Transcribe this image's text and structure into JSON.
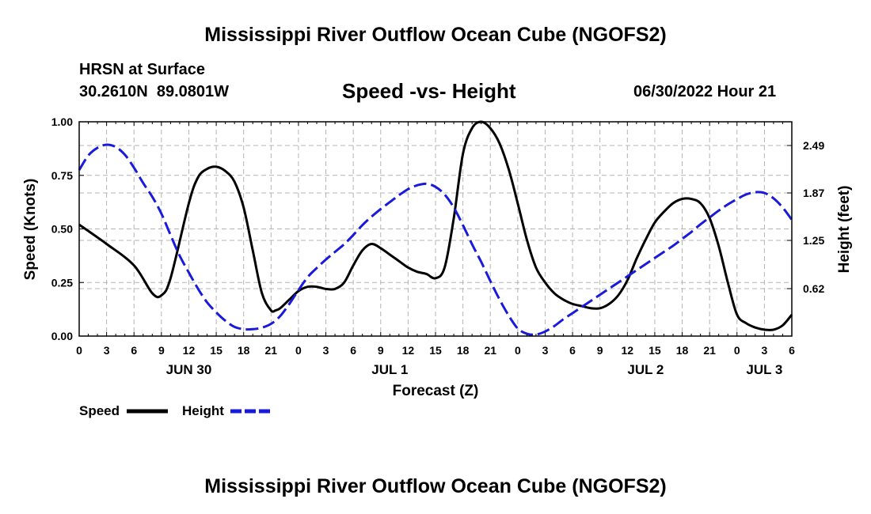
{
  "header": {
    "title": "Mississippi River Outflow Ocean Cube (NGOFS2)",
    "station": "HRSN at Surface",
    "coords": "30.2610N  89.0801W",
    "subtitle": "Speed -vs- Height",
    "datetime": "06/30/2022 Hour 21"
  },
  "footer": {
    "title": "Mississippi River Outflow Ocean Cube (NGOFS2)"
  },
  "legend": {
    "speed_label": "Speed",
    "height_label": "Height"
  },
  "colors": {
    "speed": "#000000",
    "height": "#1a1adb",
    "grid": "#b4b4b4"
  },
  "chart_data": {
    "type": "line",
    "title": "Speed -vs- Height",
    "xlabel": "Forecast (Z)",
    "ylabel": "Speed (Knots)",
    "y2label": "Height (feet)",
    "xlim": [
      0,
      78
    ],
    "ylim": [
      0,
      1.0
    ],
    "y2lim": [
      0.0,
      2.8
    ],
    "x_ticks": [
      0,
      3,
      6,
      9,
      12,
      15,
      18,
      21,
      24,
      27,
      30,
      33,
      36,
      39,
      42,
      45,
      48,
      51,
      54,
      57,
      60,
      63,
      66,
      69,
      72,
      75,
      78
    ],
    "x_tick_labels": [
      "0",
      "3",
      "6",
      "9",
      "12",
      "15",
      "18",
      "21",
      "0",
      "3",
      "6",
      "9",
      "12",
      "15",
      "18",
      "21",
      "0",
      "3",
      "6",
      "9",
      "12",
      "15",
      "18",
      "21",
      "0",
      "3",
      "6"
    ],
    "y_ticks": [
      0.0,
      0.25,
      0.5,
      0.75,
      1.0
    ],
    "y_tick_labels": [
      "0.00",
      "0.25",
      "0.50",
      "0.75",
      "1.00"
    ],
    "y2_ticks": [
      0.62,
      1.25,
      1.87,
      2.49
    ],
    "y2_tick_labels": [
      "0.62",
      "1.25",
      "1.87",
      "2.49"
    ],
    "day_labels": [
      {
        "x": 12,
        "label": "JUN 30"
      },
      {
        "x": 34,
        "label": "JUL 1"
      },
      {
        "x": 62,
        "label": "JUL 2"
      },
      {
        "x": 75,
        "label": "JUL 3"
      }
    ],
    "series": [
      {
        "name": "Speed",
        "axis": "left",
        "style": "solid",
        "x": [
          0,
          3,
          6,
          8,
          9,
          10,
          12,
          13,
          14,
          15,
          16,
          17,
          18,
          19,
          20,
          21,
          21.5,
          22,
          23,
          24,
          25,
          26,
          27,
          28,
          29,
          30,
          31,
          32,
          33,
          34,
          35,
          36,
          37,
          38,
          39,
          40,
          41,
          42,
          43,
          44,
          45,
          46,
          47,
          48,
          49,
          50,
          51,
          52,
          53,
          54,
          55,
          56,
          57,
          58,
          59,
          60,
          61,
          62,
          63,
          64,
          65,
          66,
          67,
          68,
          69,
          70,
          71,
          72,
          73,
          74,
          75,
          76,
          77,
          78
        ],
        "y": [
          0.52,
          0.43,
          0.33,
          0.2,
          0.19,
          0.27,
          0.62,
          0.74,
          0.78,
          0.79,
          0.77,
          0.72,
          0.6,
          0.4,
          0.2,
          0.12,
          0.12,
          0.13,
          0.17,
          0.21,
          0.23,
          0.23,
          0.22,
          0.22,
          0.25,
          0.33,
          0.4,
          0.43,
          0.41,
          0.38,
          0.35,
          0.32,
          0.3,
          0.29,
          0.27,
          0.32,
          0.55,
          0.85,
          0.97,
          1.0,
          0.97,
          0.9,
          0.78,
          0.62,
          0.45,
          0.32,
          0.25,
          0.2,
          0.17,
          0.15,
          0.14,
          0.13,
          0.13,
          0.15,
          0.19,
          0.26,
          0.36,
          0.45,
          0.53,
          0.58,
          0.62,
          0.64,
          0.64,
          0.62,
          0.55,
          0.42,
          0.25,
          0.1,
          0.06,
          0.04,
          0.03,
          0.03,
          0.05,
          0.1
        ]
      },
      {
        "name": "Height",
        "axis": "right",
        "style": "dashed",
        "x": [
          0,
          1,
          2,
          3,
          4,
          5,
          6,
          7,
          8,
          9,
          10,
          11,
          12,
          13,
          14,
          15,
          16,
          17,
          18,
          19,
          20,
          21,
          22,
          23,
          24,
          25,
          26,
          27,
          28,
          29,
          30,
          31,
          32,
          33,
          34,
          35,
          36,
          37,
          38,
          39,
          40,
          41,
          42,
          43,
          44,
          45,
          46,
          47,
          48,
          49,
          50,
          51,
          52,
          53,
          54,
          55,
          56,
          57,
          58,
          59,
          60,
          61,
          62,
          63,
          64,
          65,
          66,
          67,
          68,
          69,
          70,
          71,
          72,
          73,
          74,
          75,
          76,
          77,
          78
        ],
        "y": [
          2.17,
          2.36,
          2.46,
          2.5,
          2.47,
          2.37,
          2.2,
          2.0,
          1.82,
          1.6,
          1.32,
          1.05,
          0.83,
          0.62,
          0.44,
          0.31,
          0.2,
          0.12,
          0.09,
          0.09,
          0.11,
          0.16,
          0.26,
          0.42,
          0.6,
          0.77,
          0.89,
          1.0,
          1.1,
          1.2,
          1.32,
          1.45,
          1.56,
          1.66,
          1.75,
          1.84,
          1.92,
          1.97,
          1.99,
          1.95,
          1.85,
          1.68,
          1.45,
          1.2,
          0.97,
          0.72,
          0.48,
          0.27,
          0.1,
          0.03,
          0.02,
          0.06,
          0.13,
          0.22,
          0.3,
          0.38,
          0.46,
          0.54,
          0.62,
          0.7,
          0.78,
          0.86,
          0.94,
          1.02,
          1.1,
          1.18,
          1.27,
          1.36,
          1.46,
          1.55,
          1.64,
          1.72,
          1.79,
          1.85,
          1.88,
          1.87,
          1.8,
          1.68,
          1.52
        ]
      }
    ]
  }
}
